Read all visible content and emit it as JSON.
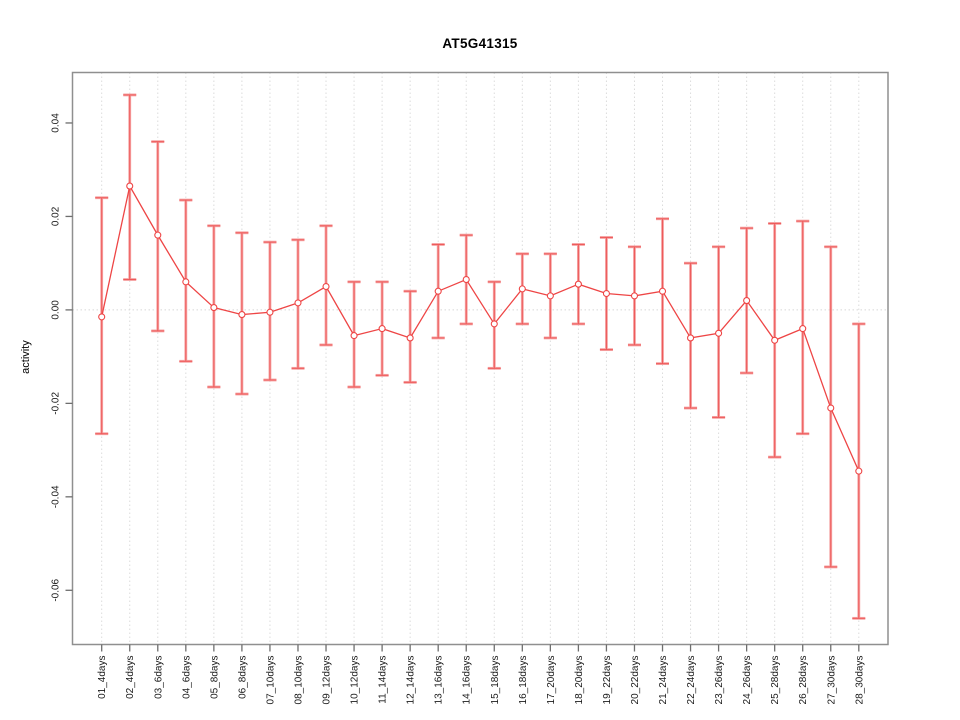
{
  "chart_data": {
    "type": "line",
    "title": "AT5G41315",
    "xlabel": "",
    "ylabel": "activity",
    "legend": "none",
    "grid": "vertical dotted gridlines at each category; dotted horizontal line at y=0",
    "categories": [
      "01_4days",
      "02_4days",
      "03_6days",
      "04_6days",
      "05_8days",
      "06_8days",
      "07_10days",
      "08_10days",
      "09_12days",
      "10_12days",
      "11_14days",
      "12_14days",
      "13_16days",
      "14_16days",
      "15_18days",
      "16_18days",
      "17_20days",
      "18_20days",
      "19_22days",
      "20_22days",
      "21_24days",
      "22_24days",
      "23_26days",
      "24_26days",
      "25_28days",
      "26_28days",
      "27_30days",
      "28_30days"
    ],
    "series": [
      {
        "name": "activity",
        "marker": "open-circle",
        "values": [
          -0.0015,
          0.0265,
          0.016,
          0.006,
          0.0005,
          -0.001,
          -0.0005,
          0.0015,
          0.005,
          -0.0055,
          -0.004,
          -0.006,
          0.004,
          0.0065,
          -0.003,
          0.0045,
          0.003,
          0.0055,
          0.0035,
          0.003,
          0.004,
          -0.006,
          -0.005,
          0.002,
          -0.0065,
          -0.004,
          -0.021,
          -0.0345
        ],
        "error_high": [
          0.024,
          0.046,
          0.036,
          0.0235,
          0.018,
          0.0165,
          0.0145,
          0.015,
          0.018,
          0.006,
          0.006,
          0.004,
          0.014,
          0.016,
          0.006,
          0.012,
          0.012,
          0.014,
          0.0155,
          0.0135,
          0.0195,
          0.01,
          0.0135,
          0.0175,
          0.0185,
          0.019,
          0.0135,
          -0.003
        ],
        "error_low": [
          -0.0265,
          0.0065,
          -0.0045,
          -0.011,
          -0.0165,
          -0.018,
          -0.015,
          -0.0125,
          -0.0075,
          -0.0165,
          -0.014,
          -0.0155,
          -0.006,
          -0.003,
          -0.0125,
          -0.003,
          -0.006,
          -0.003,
          -0.0085,
          -0.0075,
          -0.0115,
          -0.021,
          -0.023,
          -0.0135,
          -0.0315,
          -0.0265,
          -0.055,
          -0.066
        ]
      }
    ],
    "y_ticks": [
      -0.06,
      -0.04,
      -0.02,
      0.0,
      0.02,
      0.04
    ],
    "ylim": [
      -0.0716,
      0.0508
    ],
    "colors": {
      "line": "#ee4545",
      "marker_fill": "#ffffff",
      "error_bar_light": "#f5a2a2",
      "error_bar_core": "#ee5959",
      "grid": "#dcdcdc",
      "zero_line": "#d8d8d8",
      "axis_box": "#8f8f8f",
      "tick": "#6e6e6e",
      "tick_label": "#1a1a1a"
    }
  }
}
